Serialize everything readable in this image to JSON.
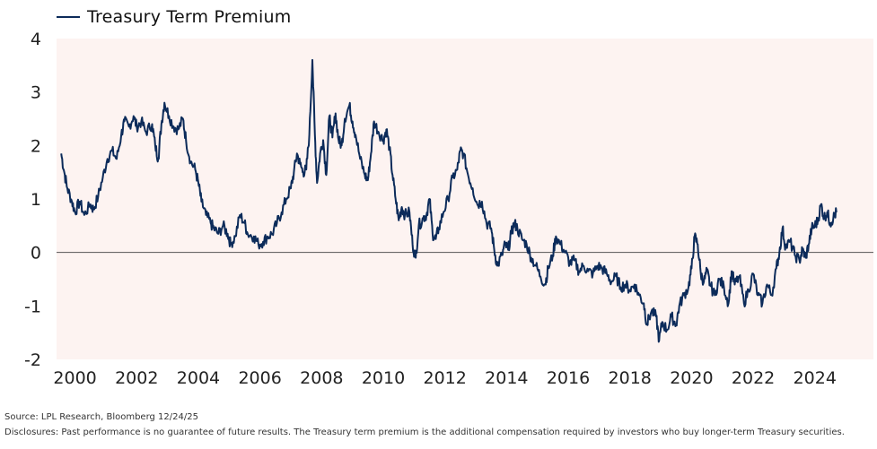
{
  "chart_data": {
    "type": "line",
    "title": "",
    "xlabel": "",
    "ylabel": "",
    "xlim": [
      1999.4,
      2025.9
    ],
    "ylim": [
      -2,
      4
    ],
    "y_ticks": [
      4,
      3,
      2,
      1,
      0,
      -1,
      -2
    ],
    "x_ticks": [
      "2000",
      "2002",
      "2004",
      "2006",
      "2008",
      "2010",
      "2012",
      "2014",
      "2016",
      "2018",
      "2020",
      "2022",
      "2024"
    ],
    "grid": false,
    "zero_line": true,
    "legend": "top-left",
    "series": [
      {
        "name": "Treasury Term Premium",
        "color": "#0c2b5a",
        "points": [
          [
            1999.55,
            1.85
          ],
          [
            1999.65,
            1.5
          ],
          [
            1999.75,
            1.2
          ],
          [
            1999.9,
            0.95
          ],
          [
            2000.0,
            0.75
          ],
          [
            2000.15,
            0.95
          ],
          [
            2000.3,
            0.7
          ],
          [
            2000.5,
            0.9
          ],
          [
            2000.6,
            0.8
          ],
          [
            2000.75,
            1.05
          ],
          [
            2000.9,
            1.4
          ],
          [
            2001.05,
            1.75
          ],
          [
            2001.2,
            1.9
          ],
          [
            2001.35,
            1.75
          ],
          [
            2001.5,
            2.2
          ],
          [
            2001.6,
            2.45
          ],
          [
            2001.75,
            2.35
          ],
          [
            2001.9,
            2.55
          ],
          [
            2002.0,
            2.35
          ],
          [
            2002.15,
            2.45
          ],
          [
            2002.3,
            2.25
          ],
          [
            2002.5,
            2.4
          ],
          [
            2002.6,
            2.0
          ],
          [
            2002.7,
            1.75
          ],
          [
            2002.8,
            2.4
          ],
          [
            2002.9,
            2.8
          ],
          [
            2003.05,
            2.55
          ],
          [
            2003.2,
            2.35
          ],
          [
            2003.35,
            2.3
          ],
          [
            2003.5,
            2.5
          ],
          [
            2003.6,
            2.1
          ],
          [
            2003.75,
            1.7
          ],
          [
            2003.9,
            1.55
          ],
          [
            2004.0,
            1.3
          ],
          [
            2004.1,
            0.95
          ],
          [
            2004.25,
            0.7
          ],
          [
            2004.4,
            0.55
          ],
          [
            2004.5,
            0.45
          ],
          [
            2004.65,
            0.35
          ],
          [
            2004.8,
            0.5
          ],
          [
            2004.95,
            0.35
          ],
          [
            2005.05,
            0.15
          ],
          [
            2005.2,
            0.3
          ],
          [
            2005.35,
            0.7
          ],
          [
            2005.5,
            0.55
          ],
          [
            2005.6,
            0.35
          ],
          [
            2005.8,
            0.3
          ],
          [
            2005.95,
            0.15
          ],
          [
            2006.1,
            0.2
          ],
          [
            2006.25,
            0.3
          ],
          [
            2006.4,
            0.35
          ],
          [
            2006.55,
            0.55
          ],
          [
            2006.7,
            0.75
          ],
          [
            2006.85,
            1.0
          ],
          [
            2007.0,
            1.2
          ],
          [
            2007.1,
            1.5
          ],
          [
            2007.2,
            1.85
          ],
          [
            2007.3,
            1.65
          ],
          [
            2007.4,
            1.5
          ],
          [
            2007.5,
            1.55
          ],
          [
            2007.6,
            2.2
          ],
          [
            2007.7,
            3.6
          ],
          [
            2007.78,
            2.2
          ],
          [
            2007.85,
            1.3
          ],
          [
            2007.95,
            1.85
          ],
          [
            2008.05,
            2.1
          ],
          [
            2008.15,
            1.45
          ],
          [
            2008.25,
            2.55
          ],
          [
            2008.35,
            2.15
          ],
          [
            2008.45,
            2.6
          ],
          [
            2008.55,
            2.1
          ],
          [
            2008.65,
            2.0
          ],
          [
            2008.75,
            2.5
          ],
          [
            2008.9,
            2.75
          ],
          [
            2009.0,
            2.45
          ],
          [
            2009.1,
            2.2
          ],
          [
            2009.25,
            1.75
          ],
          [
            2009.4,
            1.45
          ],
          [
            2009.5,
            1.35
          ],
          [
            2009.6,
            1.85
          ],
          [
            2009.7,
            2.45
          ],
          [
            2009.85,
            2.25
          ],
          [
            2010.0,
            2.1
          ],
          [
            2010.1,
            2.3
          ],
          [
            2010.2,
            1.95
          ],
          [
            2010.3,
            1.45
          ],
          [
            2010.4,
            1.0
          ],
          [
            2010.5,
            0.6
          ],
          [
            2010.6,
            0.85
          ],
          [
            2010.7,
            0.7
          ],
          [
            2010.85,
            0.75
          ],
          [
            2010.95,
            0.15
          ],
          [
            2011.05,
            -0.1
          ],
          [
            2011.15,
            0.5
          ],
          [
            2011.3,
            0.65
          ],
          [
            2011.4,
            0.7
          ],
          [
            2011.5,
            1.0
          ],
          [
            2011.6,
            0.35
          ],
          [
            2011.7,
            0.25
          ],
          [
            2011.8,
            0.45
          ],
          [
            2011.95,
            0.75
          ],
          [
            2012.1,
            1.0
          ],
          [
            2012.25,
            1.4
          ],
          [
            2012.4,
            1.55
          ],
          [
            2012.5,
            1.9
          ],
          [
            2012.6,
            1.85
          ],
          [
            2012.75,
            1.45
          ],
          [
            2012.9,
            1.2
          ],
          [
            2013.05,
            0.9
          ],
          [
            2013.2,
            0.95
          ],
          [
            2013.35,
            0.55
          ],
          [
            2013.5,
            0.45
          ],
          [
            2013.6,
            0.05
          ],
          [
            2013.7,
            -0.25
          ],
          [
            2013.85,
            -0.05
          ],
          [
            2013.95,
            0.15
          ],
          [
            2014.05,
            0.05
          ],
          [
            2014.15,
            0.35
          ],
          [
            2014.25,
            0.55
          ],
          [
            2014.35,
            0.45
          ],
          [
            2014.5,
            0.25
          ],
          [
            2014.65,
            0.15
          ],
          [
            2014.8,
            -0.1
          ],
          [
            2014.95,
            -0.25
          ],
          [
            2015.1,
            -0.45
          ],
          [
            2015.25,
            -0.6
          ],
          [
            2015.35,
            -0.3
          ],
          [
            2015.5,
            -0.05
          ],
          [
            2015.6,
            0.3
          ],
          [
            2015.75,
            0.15
          ],
          [
            2015.9,
            0.0
          ],
          [
            2016.05,
            -0.2
          ],
          [
            2016.2,
            -0.15
          ],
          [
            2016.35,
            -0.35
          ],
          [
            2016.5,
            -0.25
          ],
          [
            2016.65,
            -0.35
          ],
          [
            2016.8,
            -0.4
          ],
          [
            2016.95,
            -0.25
          ],
          [
            2017.1,
            -0.3
          ],
          [
            2017.25,
            -0.4
          ],
          [
            2017.4,
            -0.55
          ],
          [
            2017.55,
            -0.45
          ],
          [
            2017.7,
            -0.65
          ],
          [
            2017.85,
            -0.6
          ],
          [
            2018.0,
            -0.7
          ],
          [
            2018.15,
            -0.6
          ],
          [
            2018.3,
            -0.8
          ],
          [
            2018.45,
            -0.95
          ],
          [
            2018.55,
            -1.35
          ],
          [
            2018.7,
            -1.1
          ],
          [
            2018.85,
            -1.2
          ],
          [
            2018.95,
            -1.65
          ],
          [
            2019.05,
            -1.3
          ],
          [
            2019.2,
            -1.45
          ],
          [
            2019.35,
            -1.2
          ],
          [
            2019.5,
            -1.35
          ],
          [
            2019.6,
            -1.0
          ],
          [
            2019.75,
            -0.8
          ],
          [
            2019.9,
            -0.65
          ],
          [
            2020.0,
            -0.3
          ],
          [
            2020.1,
            0.3
          ],
          [
            2020.2,
            0.15
          ],
          [
            2020.3,
            -0.4
          ],
          [
            2020.4,
            -0.55
          ],
          [
            2020.5,
            -0.35
          ],
          [
            2020.6,
            -0.6
          ],
          [
            2020.75,
            -0.8
          ],
          [
            2020.9,
            -0.5
          ],
          [
            2021.05,
            -0.65
          ],
          [
            2021.2,
            -0.95
          ],
          [
            2021.3,
            -0.35
          ],
          [
            2021.4,
            -0.6
          ],
          [
            2021.55,
            -0.45
          ],
          [
            2021.7,
            -0.95
          ],
          [
            2021.85,
            -0.7
          ],
          [
            2022.0,
            -0.4
          ],
          [
            2022.15,
            -0.8
          ],
          [
            2022.3,
            -0.95
          ],
          [
            2022.45,
            -0.6
          ],
          [
            2022.6,
            -0.8
          ],
          [
            2022.75,
            -0.3
          ],
          [
            2022.85,
            0.0
          ],
          [
            2022.95,
            0.45
          ],
          [
            2023.05,
            0.1
          ],
          [
            2023.2,
            0.2
          ],
          [
            2023.35,
            -0.05
          ],
          [
            2023.5,
            -0.15
          ],
          [
            2023.6,
            0.05
          ],
          [
            2023.7,
            -0.1
          ],
          [
            2023.8,
            0.15
          ],
          [
            2023.9,
            0.45
          ],
          [
            2024.0,
            0.5
          ],
          [
            2024.1,
            0.6
          ],
          [
            2024.2,
            0.9
          ],
          [
            2024.3,
            0.65
          ],
          [
            2024.4,
            0.75
          ],
          [
            2024.5,
            0.55
          ],
          [
            2024.6,
            0.65
          ],
          [
            2024.7,
            0.75
          ]
        ]
      }
    ]
  },
  "legend_label": "Treasury Term Premium",
  "footer": {
    "source": "Source: LPL Research, Bloomberg 12/24/25",
    "disclosure": "Disclosures: Past performance is no guarantee of future results. The Treasury term premium is the additional compensation required by investors who buy longer-term Treasury securities."
  },
  "colors": {
    "line": "#0c2b5a",
    "plot_background": "#fdf3f1",
    "zero_line": "#555555"
  }
}
